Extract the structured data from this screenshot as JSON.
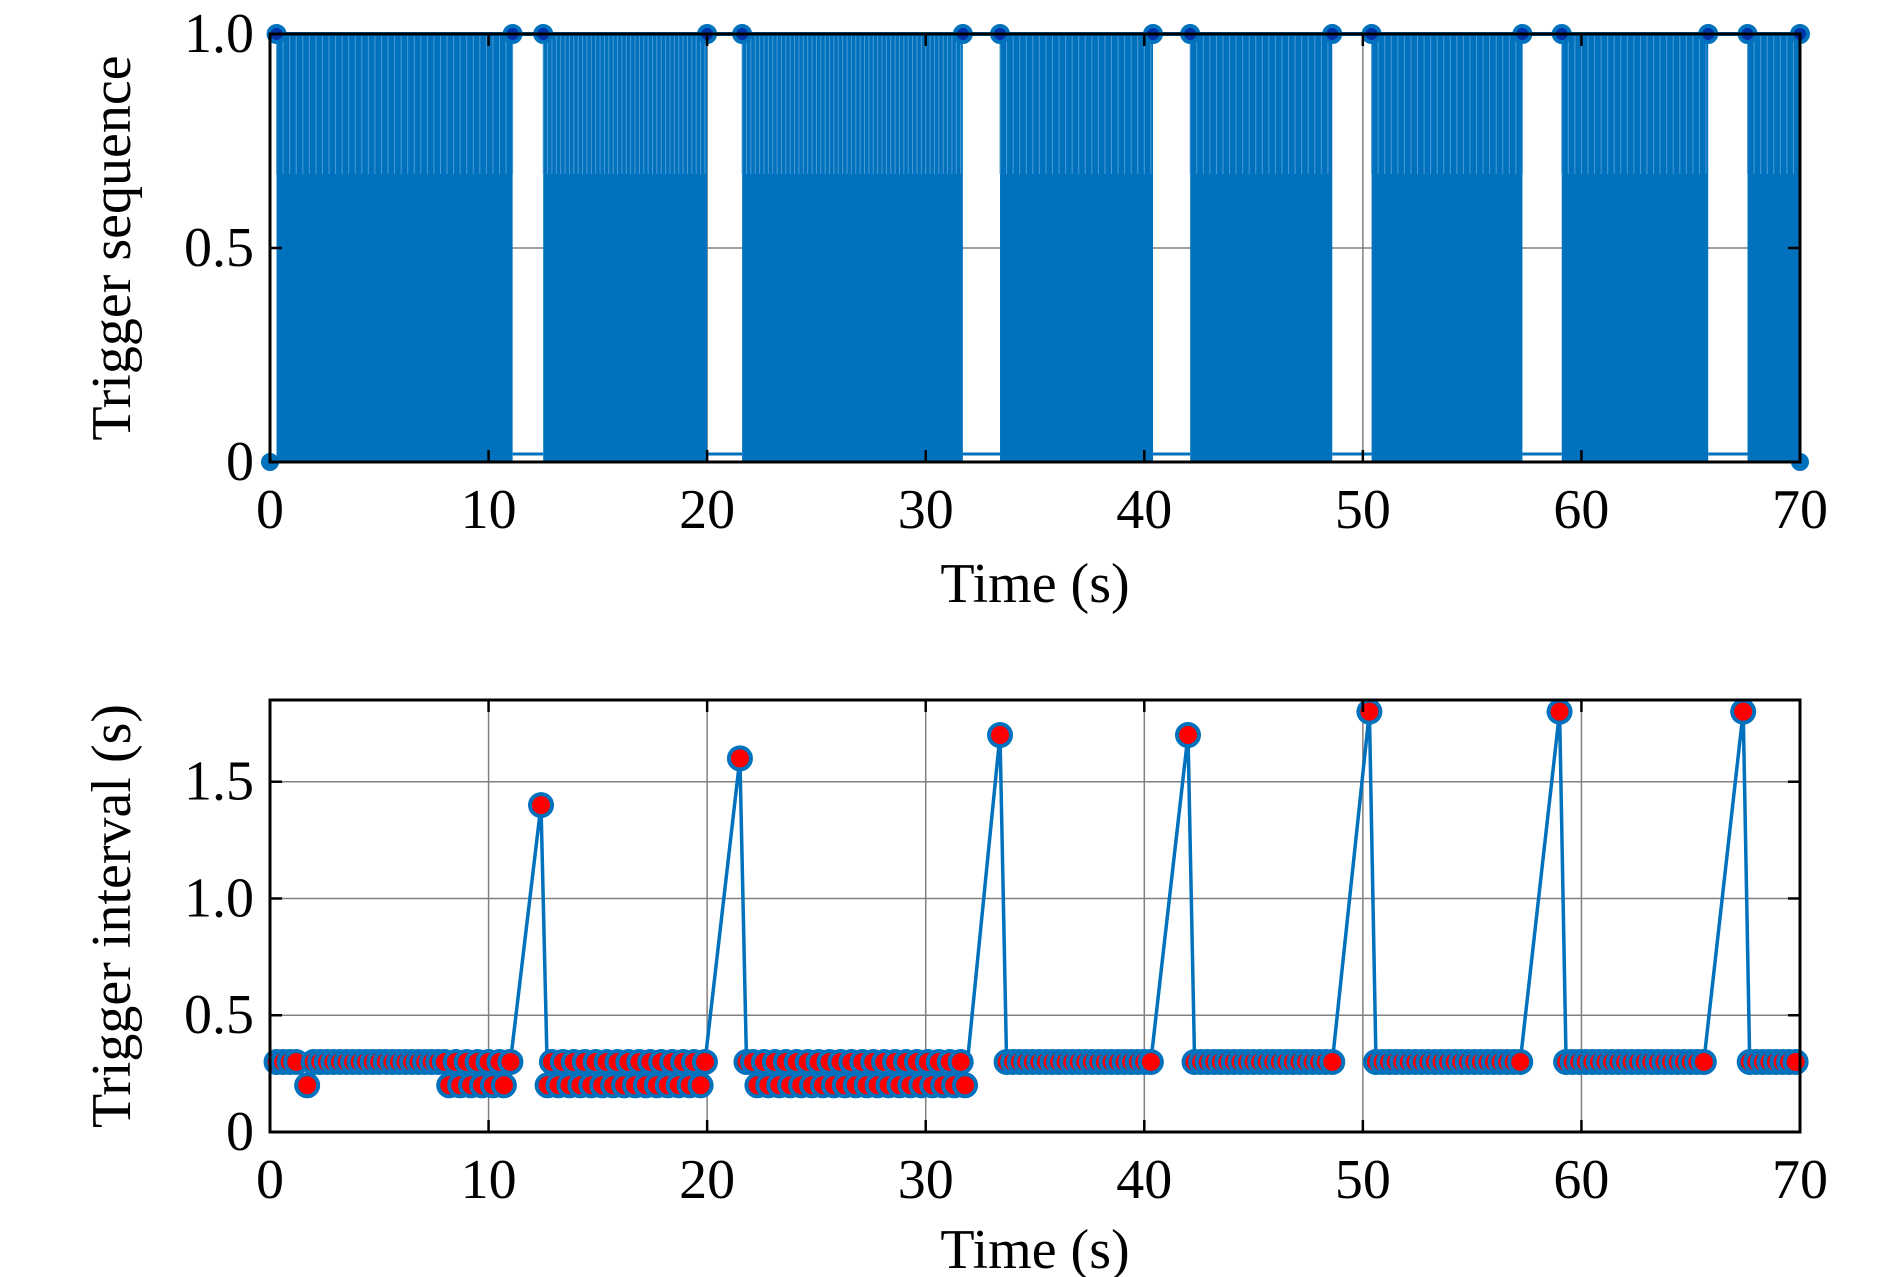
{
  "colors": {
    "series_line": "#0072BD",
    "marker_face_bottom": "#FF0000",
    "grid": "#808080",
    "axes": "#000000",
    "background": "#FFFFFF"
  },
  "chart_data": [
    {
      "id": "trigger-sequence",
      "type": "line",
      "title": "",
      "xlabel": "Time (s)",
      "ylabel": "Trigger sequence",
      "xlim": [
        0,
        70
      ],
      "ylim": [
        0,
        1
      ],
      "xticks": [
        0,
        10,
        20,
        30,
        40,
        50,
        60,
        70
      ],
      "xtick_labels": [
        "0",
        "10",
        "20",
        "30",
        "40",
        "50",
        "60",
        "70"
      ],
      "yticks": [
        0,
        0.5,
        1.0
      ],
      "ytick_labels": [
        "0",
        "0.5",
        "1.0"
      ],
      "grid": true,
      "description": "Binary trigger pulses (0/1) emitted at the trigger instants; gaps show long trigger intervals",
      "trigger_bursts": [
        {
          "start": 0.3,
          "end": 11.1,
          "interval": 0.3
        },
        {
          "start": 12.5,
          "end": 20.0,
          "interval": 0.2
        },
        {
          "start": 21.6,
          "end": 31.7,
          "interval": 0.2
        },
        {
          "start": 33.4,
          "end": 40.4,
          "interval": 0.3
        },
        {
          "start": 42.1,
          "end": 48.6,
          "interval": 0.3
        },
        {
          "start": 50.4,
          "end": 57.3,
          "interval": 0.3
        },
        {
          "start": 59.1,
          "end": 65.8,
          "interval": 0.3
        },
        {
          "start": 67.6,
          "end": 70.0,
          "interval": 0.3
        }
      ]
    },
    {
      "id": "trigger-interval",
      "type": "line",
      "title": "",
      "xlabel": "Time (s)",
      "ylabel": "Trigger interval (s)",
      "xlim": [
        0,
        70
      ],
      "ylim": [
        0,
        1.85
      ],
      "xticks": [
        0,
        10,
        20,
        30,
        40,
        50,
        60,
        70
      ],
      "xtick_labels": [
        "0",
        "10",
        "20",
        "30",
        "40",
        "50",
        "60",
        "70"
      ],
      "yticks": [
        0,
        0.5,
        1.0,
        1.5
      ],
      "ytick_labels": [
        "0",
        "0.5",
        "1.0",
        "1.5"
      ],
      "grid": true,
      "marker": "circle",
      "series": [
        {
          "name": "Trigger interval",
          "x": [
            0.3,
            0.6,
            0.9,
            1.2,
            1.7,
            2.0,
            2.3,
            2.6,
            2.9,
            3.2,
            3.5,
            3.8,
            4.1,
            4.4,
            4.7,
            5.0,
            5.3,
            5.6,
            5.9,
            6.2,
            6.5,
            6.8,
            7.1,
            7.4,
            7.7,
            8.0,
            8.2,
            8.5,
            8.7,
            9.0,
            9.2,
            9.5,
            9.7,
            10.0,
            10.2,
            10.5,
            10.7,
            11.0,
            12.4,
            12.7,
            12.9,
            13.2,
            13.4,
            13.7,
            13.9,
            14.2,
            14.4,
            14.7,
            14.9,
            15.2,
            15.4,
            15.7,
            15.9,
            16.2,
            16.4,
            16.7,
            16.9,
            17.2,
            17.4,
            17.7,
            17.9,
            18.2,
            18.4,
            18.7,
            18.9,
            19.2,
            19.4,
            19.7,
            19.9,
            21.5,
            21.8,
            22.1,
            22.3,
            22.6,
            22.8,
            23.1,
            23.3,
            23.6,
            23.8,
            24.1,
            24.3,
            24.6,
            24.8,
            25.1,
            25.3,
            25.6,
            25.8,
            26.1,
            26.3,
            26.6,
            26.8,
            27.1,
            27.3,
            27.6,
            27.8,
            28.1,
            28.3,
            28.6,
            28.8,
            29.1,
            29.3,
            29.6,
            29.8,
            30.1,
            30.3,
            30.6,
            30.8,
            31.1,
            31.3,
            31.6,
            31.8,
            33.4,
            33.7,
            34.0,
            34.3,
            34.6,
            34.9,
            35.2,
            35.5,
            35.8,
            36.1,
            36.4,
            36.7,
            37.0,
            37.3,
            37.6,
            37.9,
            38.2,
            38.5,
            38.8,
            39.1,
            39.4,
            39.7,
            40.0,
            40.3,
            42.0,
            42.3,
            42.6,
            42.9,
            43.2,
            43.5,
            43.8,
            44.1,
            44.4,
            44.7,
            45.0,
            45.3,
            45.6,
            45.9,
            46.2,
            46.5,
            46.8,
            47.1,
            47.4,
            47.7,
            48.0,
            48.3,
            48.6,
            50.3,
            50.6,
            50.9,
            51.2,
            51.5,
            51.8,
            52.1,
            52.4,
            52.7,
            53.0,
            53.3,
            53.6,
            53.9,
            54.2,
            54.5,
            54.8,
            55.1,
            55.4,
            55.7,
            56.0,
            56.3,
            56.6,
            56.9,
            57.2,
            59.0,
            59.3,
            59.6,
            59.9,
            60.2,
            60.5,
            60.8,
            61.1,
            61.4,
            61.7,
            62.0,
            62.3,
            62.6,
            62.9,
            63.2,
            63.5,
            63.8,
            64.1,
            64.4,
            64.7,
            65.0,
            65.3,
            65.6,
            67.4,
            67.7,
            68.0,
            68.3,
            68.6,
            68.9,
            69.2,
            69.5,
            69.8
          ],
          "y": [
            0.3,
            0.3,
            0.3,
            0.3,
            0.2,
            0.3,
            0.3,
            0.3,
            0.3,
            0.3,
            0.3,
            0.3,
            0.3,
            0.3,
            0.3,
            0.3,
            0.3,
            0.3,
            0.3,
            0.3,
            0.3,
            0.3,
            0.3,
            0.3,
            0.3,
            0.3,
            0.2,
            0.3,
            0.2,
            0.3,
            0.2,
            0.3,
            0.2,
            0.3,
            0.2,
            0.3,
            0.2,
            0.3,
            1.4,
            0.2,
            0.3,
            0.2,
            0.3,
            0.2,
            0.3,
            0.2,
            0.3,
            0.2,
            0.3,
            0.2,
            0.3,
            0.2,
            0.3,
            0.2,
            0.3,
            0.2,
            0.3,
            0.2,
            0.3,
            0.2,
            0.3,
            0.2,
            0.3,
            0.2,
            0.3,
            0.2,
            0.3,
            0.2,
            0.3,
            1.6,
            0.3,
            0.3,
            0.2,
            0.3,
            0.2,
            0.3,
            0.2,
            0.3,
            0.2,
            0.3,
            0.2,
            0.3,
            0.2,
            0.3,
            0.2,
            0.3,
            0.2,
            0.3,
            0.2,
            0.3,
            0.2,
            0.3,
            0.2,
            0.3,
            0.2,
            0.3,
            0.2,
            0.3,
            0.2,
            0.3,
            0.2,
            0.3,
            0.2,
            0.3,
            0.2,
            0.3,
            0.2,
            0.3,
            0.2,
            0.3,
            0.2,
            1.7,
            0.3,
            0.3,
            0.3,
            0.3,
            0.3,
            0.3,
            0.3,
            0.3,
            0.3,
            0.3,
            0.3,
            0.3,
            0.3,
            0.3,
            0.3,
            0.3,
            0.3,
            0.3,
            0.3,
            0.3,
            0.3,
            0.3,
            0.3,
            1.7,
            0.3,
            0.3,
            0.3,
            0.3,
            0.3,
            0.3,
            0.3,
            0.3,
            0.3,
            0.3,
            0.3,
            0.3,
            0.3,
            0.3,
            0.3,
            0.3,
            0.3,
            0.3,
            0.3,
            0.3,
            0.3,
            0.3,
            1.8,
            0.3,
            0.3,
            0.3,
            0.3,
            0.3,
            0.3,
            0.3,
            0.3,
            0.3,
            0.3,
            0.3,
            0.3,
            0.3,
            0.3,
            0.3,
            0.3,
            0.3,
            0.3,
            0.3,
            0.3,
            0.3,
            0.3,
            0.3,
            1.8,
            0.3,
            0.3,
            0.3,
            0.3,
            0.3,
            0.3,
            0.3,
            0.3,
            0.3,
            0.3,
            0.3,
            0.3,
            0.3,
            0.3,
            0.3,
            0.3,
            0.3,
            0.3,
            0.3,
            0.3,
            0.3,
            0.3,
            1.8,
            0.3,
            0.3,
            0.3,
            0.3,
            0.3,
            0.3,
            0.3,
            0.3
          ]
        }
      ]
    }
  ]
}
